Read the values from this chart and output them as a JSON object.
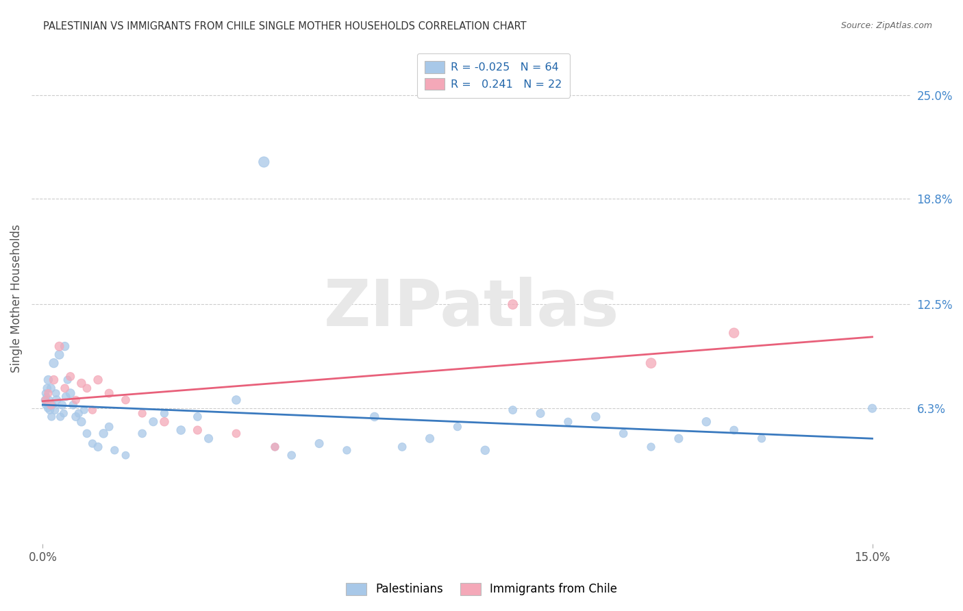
{
  "title": "PALESTINIAN VS IMMIGRANTS FROM CHILE SINGLE MOTHER HOUSEHOLDS CORRELATION CHART",
  "source": "Source: ZipAtlas.com",
  "ylabel": "Single Mother Households",
  "palestinian_color": "#a8c8e8",
  "chile_color": "#f4a8b8",
  "trend_blue": "#3a7abf",
  "trend_pink": "#e8607a",
  "watermark_text": "ZIPatlas",
  "pal_R": -0.025,
  "pal_N": 64,
  "chile_R": 0.241,
  "chile_N": 22,
  "palestinians_x": [
    0.0004,
    0.0005,
    0.0006,
    0.0007,
    0.0008,
    0.0009,
    0.001,
    0.0012,
    0.0013,
    0.0015,
    0.0016,
    0.0018,
    0.002,
    0.0022,
    0.0024,
    0.0025,
    0.003,
    0.0032,
    0.0035,
    0.0038,
    0.004,
    0.0042,
    0.0045,
    0.005,
    0.0055,
    0.006,
    0.0065,
    0.007,
    0.0075,
    0.008,
    0.009,
    0.01,
    0.011,
    0.012,
    0.013,
    0.015,
    0.018,
    0.02,
    0.022,
    0.025,
    0.028,
    0.03,
    0.035,
    0.04,
    0.042,
    0.045,
    0.05,
    0.055,
    0.06,
    0.065,
    0.07,
    0.075,
    0.08,
    0.085,
    0.09,
    0.095,
    0.1,
    0.105,
    0.11,
    0.115,
    0.12,
    0.125,
    0.13,
    0.15
  ],
  "palestinians_y": [
    0.068,
    0.072,
    0.065,
    0.07,
    0.075,
    0.063,
    0.08,
    0.068,
    0.062,
    0.075,
    0.058,
    0.065,
    0.09,
    0.062,
    0.072,
    0.068,
    0.095,
    0.058,
    0.065,
    0.06,
    0.1,
    0.07,
    0.08,
    0.072,
    0.065,
    0.058,
    0.06,
    0.055,
    0.062,
    0.048,
    0.042,
    0.04,
    0.048,
    0.052,
    0.038,
    0.035,
    0.048,
    0.055,
    0.06,
    0.05,
    0.058,
    0.045,
    0.068,
    0.21,
    0.04,
    0.035,
    0.042,
    0.038,
    0.058,
    0.04,
    0.045,
    0.052,
    0.038,
    0.062,
    0.06,
    0.055,
    0.058,
    0.048,
    0.04,
    0.045,
    0.055,
    0.05,
    0.045,
    0.063
  ],
  "palestinians_size": [
    60,
    55,
    65,
    50,
    70,
    55,
    80,
    60,
    70,
    75,
    65,
    55,
    90,
    70,
    60,
    80,
    85,
    65,
    75,
    60,
    80,
    70,
    65,
    85,
    70,
    75,
    65,
    80,
    60,
    70,
    65,
    75,
    80,
    70,
    65,
    60,
    70,
    75,
    65,
    80,
    70,
    75,
    80,
    120,
    65,
    70,
    75,
    65,
    80,
    70,
    75,
    65,
    80,
    70,
    75,
    65,
    80,
    70,
    65,
    75,
    80,
    70,
    65,
    75
  ],
  "chile_x": [
    0.0005,
    0.001,
    0.0015,
    0.002,
    0.003,
    0.004,
    0.005,
    0.006,
    0.007,
    0.008,
    0.009,
    0.01,
    0.012,
    0.015,
    0.018,
    0.022,
    0.028,
    0.035,
    0.042,
    0.085,
    0.11,
    0.125
  ],
  "chile_y": [
    0.068,
    0.072,
    0.065,
    0.08,
    0.1,
    0.075,
    0.082,
    0.068,
    0.078,
    0.075,
    0.062,
    0.08,
    0.072,
    0.068,
    0.06,
    0.055,
    0.05,
    0.048,
    0.04,
    0.125,
    0.09,
    0.108
  ],
  "chile_size": [
    60,
    65,
    70,
    80,
    85,
    70,
    75,
    65,
    80,
    70,
    65,
    80,
    75,
    70,
    65,
    80,
    75,
    70,
    65,
    100,
    110,
    105
  ],
  "ytick_values": [
    0.063,
    0.125,
    0.188,
    0.25
  ],
  "ytick_labels": [
    "6.3%",
    "12.5%",
    "18.8%",
    "25.0%"
  ],
  "xlim": [
    -0.002,
    0.157
  ],
  "ylim": [
    -0.018,
    0.275
  ]
}
